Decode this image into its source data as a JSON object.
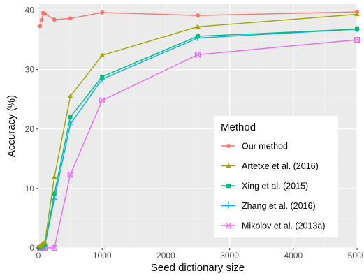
{
  "chart_data": {
    "type": "line",
    "xlabel": "Seed dictionary size",
    "ylabel": "Accuracy (%)",
    "xlim": [
      0,
      5000
    ],
    "ylim": [
      0,
      41
    ],
    "xticks": [
      0,
      1000,
      2000,
      3000,
      4000,
      5000
    ],
    "yticks": [
      0,
      10,
      20,
      30,
      40
    ],
    "grid": true,
    "legend": {
      "title": "Method",
      "placement": "right"
    },
    "series": [
      {
        "name": "Our method",
        "color": "#f8766d",
        "marker": "circle",
        "x": [
          25,
          50,
          75,
          100,
          250,
          500,
          1000,
          2500,
          5000
        ],
        "y": [
          37.3,
          38.3,
          39.5,
          39.4,
          38.4,
          38.6,
          39.6,
          39.1,
          39.7
        ]
      },
      {
        "name": "Artetxe et al. (2016)",
        "color": "#a3a500",
        "marker": "triangle",
        "x": [
          25,
          50,
          75,
          100,
          250,
          500,
          1000,
          2500,
          5000
        ],
        "y": [
          0.3,
          0.5,
          0.8,
          0.9,
          11.9,
          25.5,
          32.4,
          37.2,
          39.3
        ]
      },
      {
        "name": "Xing et al. (2015)",
        "color": "#00bf7d",
        "marker": "square",
        "x": [
          25,
          50,
          75,
          100,
          250,
          500,
          1000,
          2500,
          5000
        ],
        "y": [
          0.1,
          0.2,
          0.4,
          0.5,
          9.1,
          22.0,
          28.8,
          35.6,
          36.8
        ]
      },
      {
        "name": "Zhang et al. (2016)",
        "color": "#00b0f6",
        "marker": "plus",
        "x": [
          25,
          50,
          75,
          100,
          250,
          500,
          1000,
          2500,
          5000
        ],
        "y": [
          0.1,
          0.2,
          0.3,
          0.4,
          8.2,
          20.8,
          28.4,
          35.3,
          36.8
        ]
      },
      {
        "name": "Mikolov et al. (2013a)",
        "color": "#e76bf3",
        "marker": "boxed-x",
        "x": [
          25,
          50,
          75,
          100,
          250,
          500,
          1000,
          2500,
          5000
        ],
        "y": [
          0.0,
          0.0,
          0.0,
          0.0,
          0.0,
          12.3,
          24.8,
          32.5,
          35.0
        ]
      }
    ]
  }
}
